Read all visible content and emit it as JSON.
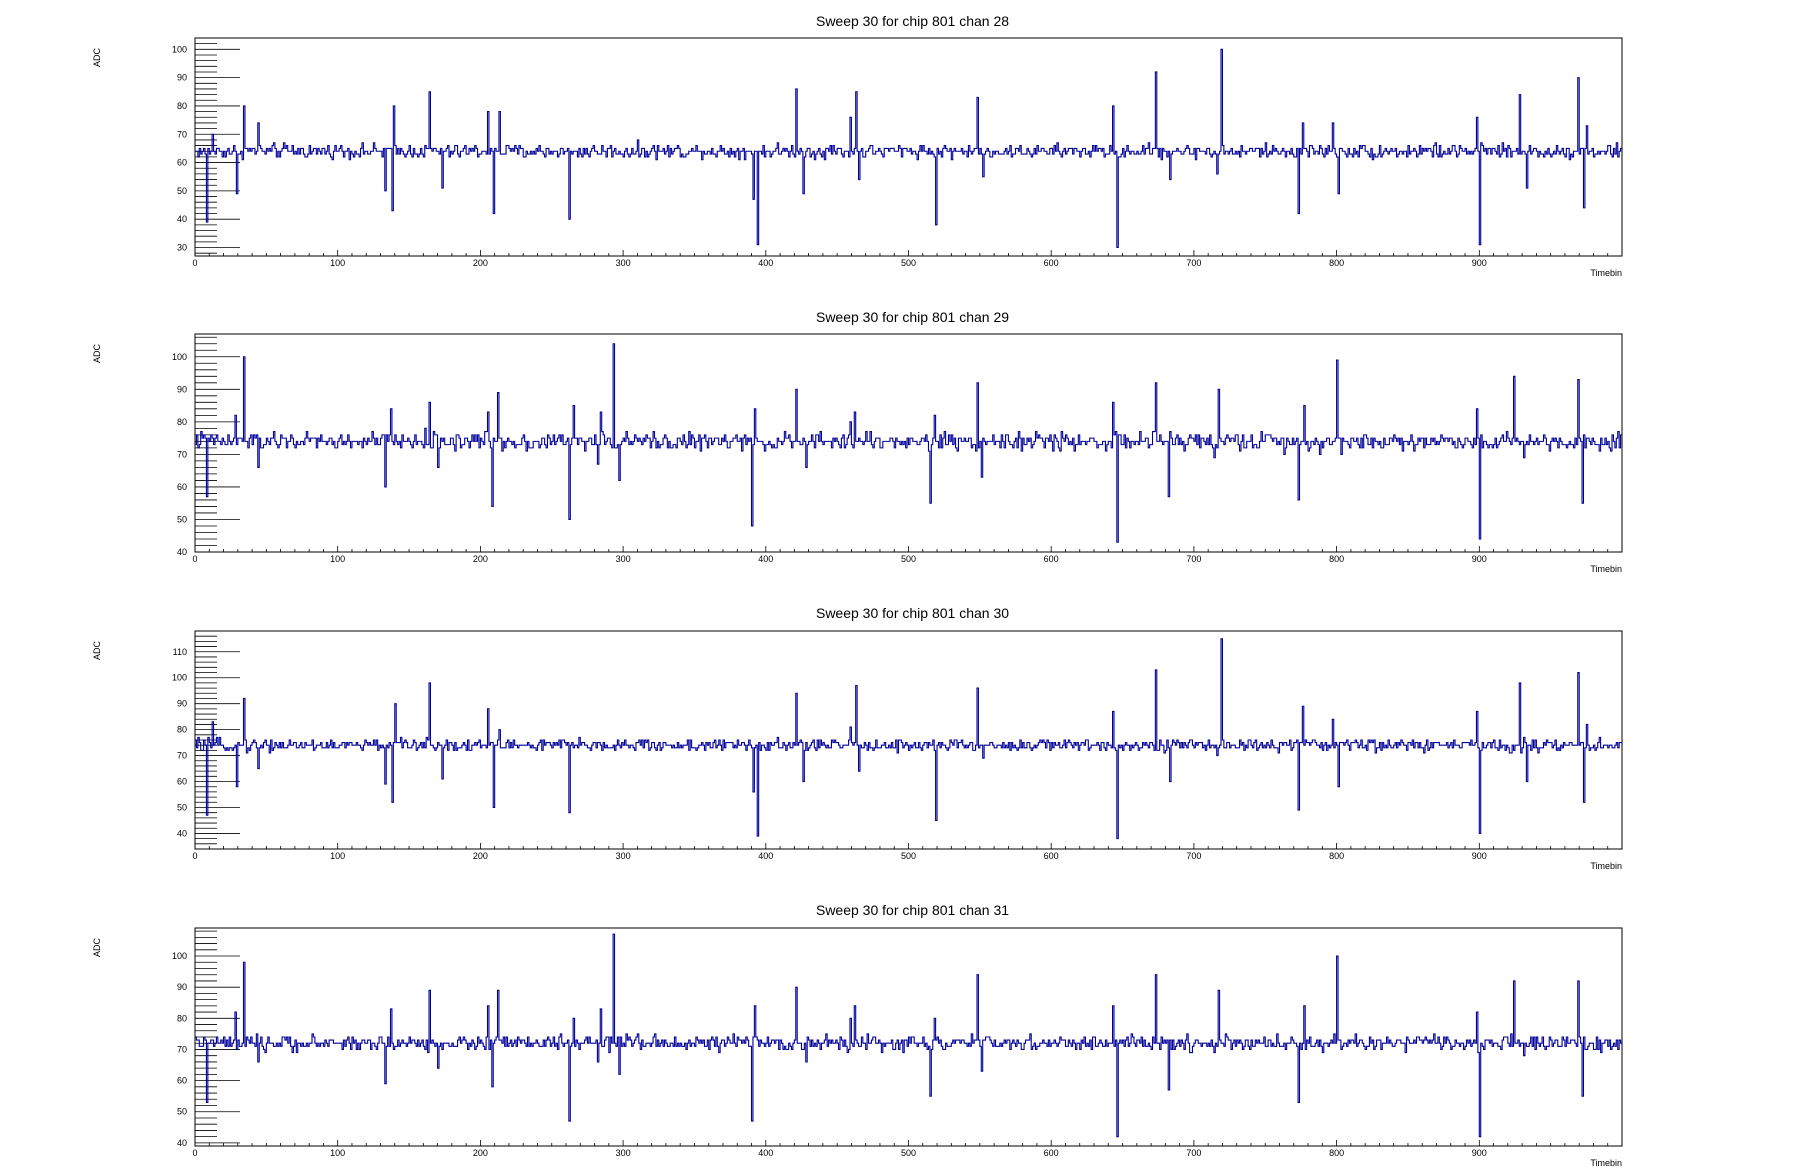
{
  "chart_data": [
    {
      "type": "line",
      "title": "Sweep 30 for chip 801 chan 28",
      "xlabel": "Timebin",
      "ylabel": "ADC",
      "xlim": [
        0,
        1000
      ],
      "ylim": [
        27,
        104
      ],
      "xticks": [
        0,
        100,
        200,
        300,
        400,
        500,
        600,
        700,
        800,
        900
      ],
      "yticks": [
        30,
        40,
        50,
        60,
        70,
        80,
        90,
        100
      ],
      "baseline": 64,
      "noise": 1.2,
      "spikes": [
        [
          8,
          39
        ],
        [
          12,
          70
        ],
        [
          29,
          49
        ],
        [
          34,
          80
        ],
        [
          44,
          74
        ],
        [
          133,
          50
        ],
        [
          138,
          43
        ],
        [
          139,
          80
        ],
        [
          164,
          85
        ],
        [
          173,
          51
        ],
        [
          205,
          78
        ],
        [
          209,
          42
        ],
        [
          213,
          78
        ],
        [
          262,
          40
        ],
        [
          391,
          47
        ],
        [
          394,
          31
        ],
        [
          421,
          86
        ],
        [
          426,
          49
        ],
        [
          459,
          76
        ],
        [
          463,
          85
        ],
        [
          465,
          54
        ],
        [
          519,
          38
        ],
        [
          548,
          83
        ],
        [
          552,
          55
        ],
        [
          643,
          80
        ],
        [
          646,
          30
        ],
        [
          673,
          92
        ],
        [
          683,
          54
        ],
        [
          716,
          56
        ],
        [
          719,
          100
        ],
        [
          773,
          42
        ],
        [
          776,
          74
        ],
        [
          797,
          74
        ],
        [
          801,
          49
        ],
        [
          898,
          76
        ],
        [
          900,
          31
        ],
        [
          928,
          84
        ],
        [
          933,
          51
        ],
        [
          969,
          90
        ],
        [
          973,
          44
        ],
        [
          975,
          73
        ]
      ],
      "series_color": "#000099"
    },
    {
      "type": "line",
      "title": "Sweep 30 for chip 801 chan 29",
      "xlabel": "Timebin",
      "ylabel": "ADC",
      "xlim": [
        0,
        1000
      ],
      "ylim": [
        40,
        107
      ],
      "xticks": [
        0,
        100,
        200,
        300,
        400,
        500,
        600,
        700,
        800,
        900
      ],
      "yticks": [
        40,
        50,
        60,
        70,
        80,
        90,
        100
      ],
      "baseline": 74,
      "noise": 1.3,
      "spikes": [
        [
          8,
          57
        ],
        [
          28,
          82
        ],
        [
          34,
          100
        ],
        [
          44,
          66
        ],
        [
          133,
          60
        ],
        [
          137,
          84
        ],
        [
          164,
          86
        ],
        [
          170,
          66
        ],
        [
          205,
          83
        ],
        [
          208,
          54
        ],
        [
          212,
          89
        ],
        [
          262,
          50
        ],
        [
          265,
          85
        ],
        [
          282,
          67
        ],
        [
          284,
          83
        ],
        [
          293,
          104
        ],
        [
          297,
          62
        ],
        [
          390,
          48
        ],
        [
          392,
          84
        ],
        [
          421,
          90
        ],
        [
          428,
          66
        ],
        [
          459,
          80
        ],
        [
          462,
          83
        ],
        [
          515,
          55
        ],
        [
          518,
          82
        ],
        [
          548,
          92
        ],
        [
          551,
          63
        ],
        [
          643,
          86
        ],
        [
          646,
          43
        ],
        [
          673,
          92
        ],
        [
          682,
          57
        ],
        [
          714,
          69
        ],
        [
          717,
          90
        ],
        [
          773,
          56
        ],
        [
          777,
          85
        ],
        [
          796,
          73
        ],
        [
          800,
          99
        ],
        [
          803,
          70
        ],
        [
          898,
          84
        ],
        [
          900,
          44
        ],
        [
          924,
          94
        ],
        [
          931,
          69
        ],
        [
          969,
          93
        ],
        [
          972,
          55
        ]
      ],
      "series_color": "#000099"
    },
    {
      "type": "line",
      "title": "Sweep 30 for chip 801 chan 30",
      "xlabel": "Timebin",
      "ylabel": "ADC",
      "xlim": [
        0,
        1000
      ],
      "ylim": [
        34,
        118
      ],
      "xticks": [
        0,
        100,
        200,
        300,
        400,
        500,
        600,
        700,
        800,
        900
      ],
      "yticks": [
        40,
        50,
        60,
        70,
        80,
        90,
        100,
        110
      ],
      "baseline": 74,
      "noise": 1.2,
      "spikes": [
        [
          8,
          47
        ],
        [
          12,
          83
        ],
        [
          29,
          58
        ],
        [
          34,
          92
        ],
        [
          44,
          65
        ],
        [
          133,
          59
        ],
        [
          138,
          52
        ],
        [
          140,
          90
        ],
        [
          164,
          98
        ],
        [
          173,
          61
        ],
        [
          205,
          88
        ],
        [
          209,
          50
        ],
        [
          213,
          80
        ],
        [
          262,
          48
        ],
        [
          391,
          56
        ],
        [
          394,
          39
        ],
        [
          421,
          94
        ],
        [
          426,
          60
        ],
        [
          459,
          81
        ],
        [
          463,
          97
        ],
        [
          465,
          64
        ],
        [
          519,
          45
        ],
        [
          548,
          96
        ],
        [
          552,
          69
        ],
        [
          643,
          87
        ],
        [
          646,
          38
        ],
        [
          673,
          103
        ],
        [
          683,
          60
        ],
        [
          716,
          70
        ],
        [
          719,
          115
        ],
        [
          773,
          49
        ],
        [
          776,
          89
        ],
        [
          797,
          84
        ],
        [
          801,
          58
        ],
        [
          898,
          87
        ],
        [
          900,
          40
        ],
        [
          928,
          98
        ],
        [
          933,
          60
        ],
        [
          969,
          102
        ],
        [
          973,
          52
        ],
        [
          975,
          82
        ]
      ],
      "series_color": "#000099"
    },
    {
      "type": "line",
      "title": "Sweep 30 for chip 801 chan 31",
      "xlabel": "Timebin",
      "ylabel": "ADC",
      "xlim": [
        0,
        1000
      ],
      "ylim": [
        39,
        109
      ],
      "xticks": [
        0,
        100,
        200,
        300,
        400,
        500,
        600,
        700,
        800,
        900
      ],
      "yticks": [
        40,
        50,
        60,
        70,
        80,
        90,
        100
      ],
      "baseline": 72,
      "noise": 1.2,
      "spikes": [
        [
          8,
          53
        ],
        [
          28,
          82
        ],
        [
          34,
          98
        ],
        [
          44,
          66
        ],
        [
          133,
          59
        ],
        [
          137,
          83
        ],
        [
          164,
          89
        ],
        [
          170,
          64
        ],
        [
          205,
          84
        ],
        [
          208,
          58
        ],
        [
          212,
          89
        ],
        [
          262,
          47
        ],
        [
          265,
          80
        ],
        [
          282,
          66
        ],
        [
          284,
          83
        ],
        [
          293,
          107
        ],
        [
          297,
          62
        ],
        [
          390,
          47
        ],
        [
          392,
          84
        ],
        [
          421,
          90
        ],
        [
          428,
          66
        ],
        [
          459,
          80
        ],
        [
          462,
          84
        ],
        [
          515,
          55
        ],
        [
          518,
          80
        ],
        [
          548,
          94
        ],
        [
          551,
          63
        ],
        [
          643,
          84
        ],
        [
          646,
          42
        ],
        [
          673,
          94
        ],
        [
          682,
          57
        ],
        [
          714,
          69
        ],
        [
          717,
          89
        ],
        [
          773,
          53
        ],
        [
          777,
          84
        ],
        [
          796,
          73
        ],
        [
          800,
          100
        ],
        [
          803,
          70
        ],
        [
          898,
          82
        ],
        [
          900,
          42
        ],
        [
          924,
          92
        ],
        [
          931,
          68
        ],
        [
          969,
          92
        ],
        [
          972,
          55
        ]
      ],
      "series_color": "#000099"
    }
  ]
}
